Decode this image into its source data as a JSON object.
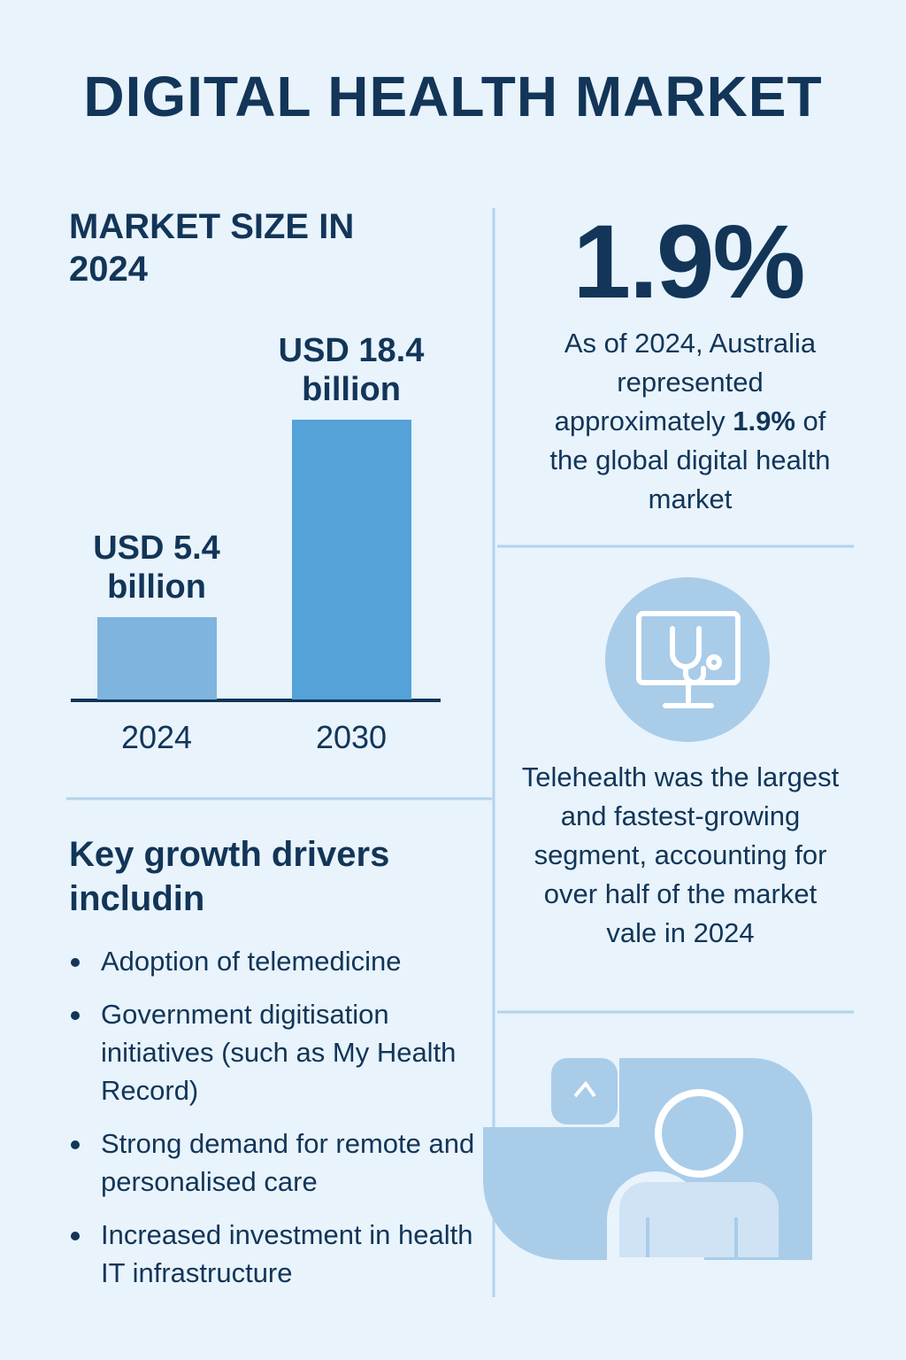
{
  "title": "DIGITAL HEALTH MARKET",
  "chart_data": {
    "type": "bar",
    "title": "MARKET SIZE IN 2024",
    "categories": [
      "2024",
      "2030"
    ],
    "values": [
      5.4,
      18.4
    ],
    "value_labels": [
      "USD 5.4 billion",
      "USD 18.4 billion"
    ],
    "colors": [
      "#7fb4de",
      "#54a2d7"
    ]
  },
  "stat": {
    "headline": "1.9%",
    "text_before": "As of 2024, Australia represented approximately",
    "text_bold": "1.9%",
    "text_after": "of the global digital health market"
  },
  "telehealth": {
    "text": "Telehealth was the largest and fastest-growing segment, accounting for over half of the market vale in 2024"
  },
  "drivers": {
    "heading": "Key growth drivers includin",
    "items": [
      "Adoption of telemedicine",
      "Government digitisation initiatives (such as My Health Record)",
      "Strong demand for remote and personalised care",
      "Increased investment in health IT infrastructure"
    ]
  }
}
